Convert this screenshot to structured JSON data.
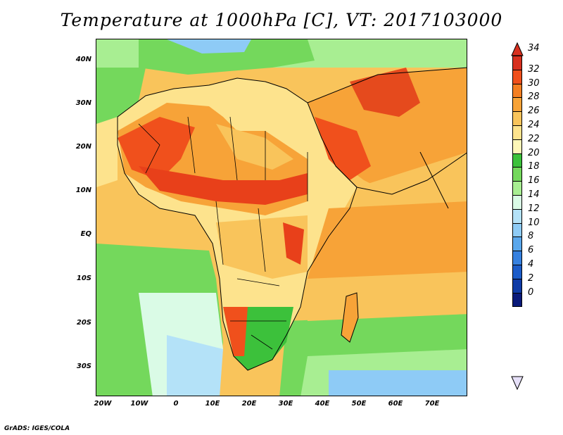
{
  "title": "Temperature at 1000hPa [C], VT: 2017103000",
  "credit": "GrADS: IGES/COLA",
  "lat_labels": [
    "40N",
    "30N",
    "20N",
    "10N",
    "EQ",
    "10S",
    "20S",
    "30S"
  ],
  "lon_labels": [
    "20W",
    "10W",
    "0",
    "10E",
    "20E",
    "30E",
    "40E",
    "50E",
    "60E",
    "70E"
  ],
  "colorbar": {
    "levels": [
      "34",
      "32",
      "30",
      "28",
      "26",
      "24",
      "22",
      "20",
      "18",
      "16",
      "14",
      "12",
      "10",
      "8",
      "6",
      "4",
      "2",
      "0"
    ],
    "colors": [
      "#d7301f",
      "#f0501c",
      "#f47f22",
      "#f7a338",
      "#f9c45b",
      "#fde38d",
      "#fdf7b8",
      "#3cc13b",
      "#74d85c",
      "#a8ee92",
      "#dafbe6",
      "#b4e2f8",
      "#8ecbf6",
      "#5aa7ec",
      "#3681e0",
      "#1c5cc9",
      "#0f3ba6",
      "#0a1a7a"
    ]
  },
  "regions": {
    "sahara_hot": "#f0501c",
    "sahel_hot": "#e8401a",
    "arabia_hot": "#e54a1d",
    "indian_ocean": "#f7a338",
    "atlantic_south": "#74d85c",
    "cold_sea": "#b4e2f8"
  }
}
